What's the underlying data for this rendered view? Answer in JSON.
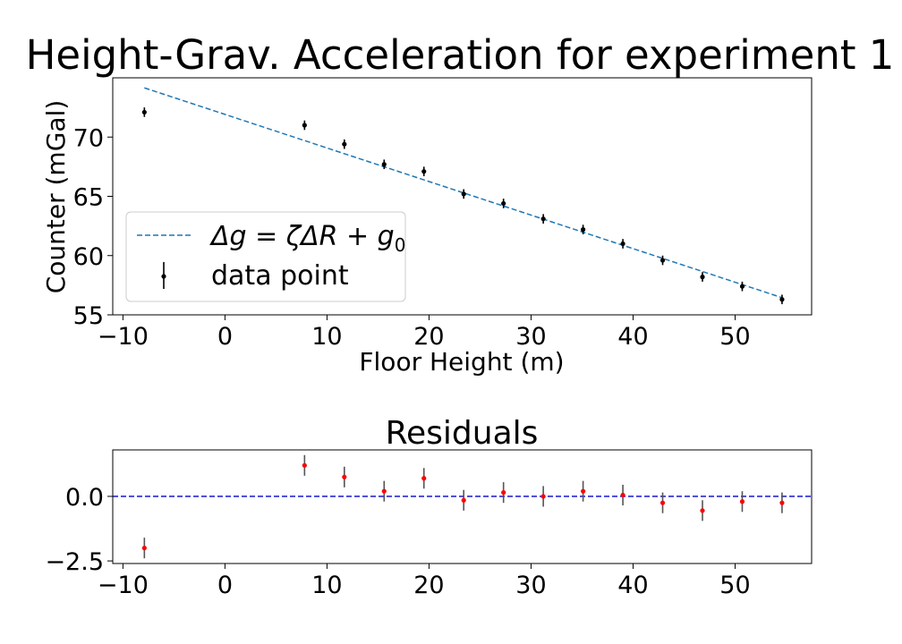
{
  "chart_data": [
    {
      "type": "scatter",
      "title": "Height-Grav. Acceleration for experiment 1",
      "xlabel": "Floor Height (m)",
      "ylabel": "Counter (mGal)",
      "xlim": [
        -11,
        57.5
      ],
      "ylim": [
        55,
        75
      ],
      "xticks": [
        -10,
        0,
        10,
        20,
        30,
        40,
        50
      ],
      "xtick_labels": [
        "−10",
        "0",
        "10",
        "20",
        "30",
        "40",
        "50"
      ],
      "yticks": [
        55,
        60,
        65,
        70
      ],
      "ytick_labels": [
        "55",
        "60",
        "65",
        "70"
      ],
      "legend_position": "lower-left",
      "grid": false,
      "series": [
        {
          "name": "data point",
          "kind": "errorbar",
          "color": "#000000",
          "x": [
            -7.9,
            7.8,
            11.7,
            15.6,
            19.5,
            23.4,
            27.3,
            31.2,
            35.1,
            39.0,
            42.9,
            46.8,
            50.7,
            54.6
          ],
          "y": [
            72.1,
            71.0,
            69.4,
            67.7,
            67.1,
            65.2,
            64.4,
            63.1,
            62.2,
            61.0,
            59.6,
            58.2,
            57.4,
            56.3
          ],
          "yerr": [
            0.4,
            0.4,
            0.4,
            0.4,
            0.4,
            0.4,
            0.4,
            0.4,
            0.4,
            0.4,
            0.4,
            0.4,
            0.4,
            0.4
          ]
        },
        {
          "name": "$\\Delta g = \\zeta \\Delta R + g_0$",
          "kind": "line",
          "style": "dashed",
          "color": "#1f77b4",
          "x": [
            -7.9,
            54.6
          ],
          "y": [
            74.15,
            56.45
          ]
        }
      ],
      "legend": [
        {
          "label": "Δg = ζΔR + g",
          "sub": "0",
          "marker": "dashed-line"
        },
        {
          "label": "data point",
          "marker": "errorbar"
        }
      ]
    },
    {
      "type": "scatter",
      "title": "Residuals",
      "xlabel": "",
      "ylabel": "",
      "xlim": [
        -11,
        57.5
      ],
      "ylim": [
        -2.6,
        1.8
      ],
      "xticks": [
        -10,
        0,
        10,
        20,
        30,
        40,
        50
      ],
      "xtick_labels": [
        "−10",
        "0",
        "10",
        "20",
        "30",
        "40",
        "50"
      ],
      "yticks": [
        -2.5,
        0.0
      ],
      "ytick_labels": [
        "−2.5",
        "0.0"
      ],
      "grid": false,
      "zero_line": {
        "y": 0,
        "style": "dashed",
        "color": "#0000cc"
      },
      "series": [
        {
          "kind": "errorbar",
          "color": "#ff0000",
          "errcolor": "#555555",
          "x": [
            -7.9,
            7.8,
            11.7,
            15.6,
            19.5,
            23.4,
            27.3,
            31.2,
            35.1,
            39.0,
            42.9,
            46.8,
            50.7,
            54.6
          ],
          "y": [
            -2.0,
            1.2,
            0.75,
            0.2,
            0.7,
            -0.15,
            0.15,
            0.0,
            0.2,
            0.05,
            -0.25,
            -0.55,
            -0.2,
            -0.25
          ],
          "yerr": [
            0.4,
            0.4,
            0.4,
            0.4,
            0.4,
            0.4,
            0.4,
            0.4,
            0.4,
            0.4,
            0.4,
            0.4,
            0.4,
            0.4
          ]
        }
      ]
    }
  ]
}
